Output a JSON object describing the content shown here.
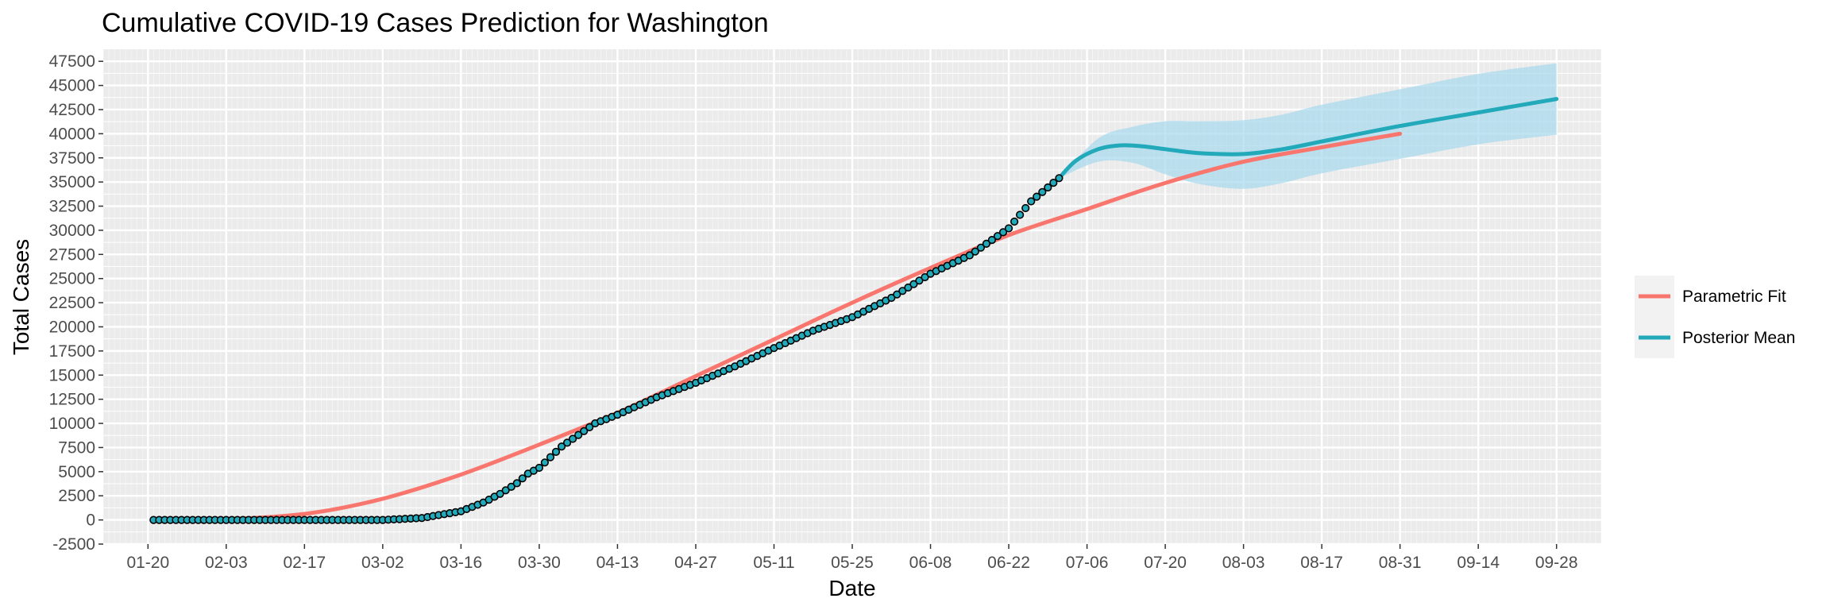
{
  "chart_data": {
    "type": "line",
    "title": "Cumulative COVID-19 Cases Prediction for Washington",
    "xlabel": "Date",
    "ylabel": "Total Cases",
    "x_tick_labels": [
      "01-20",
      "02-03",
      "02-17",
      "03-02",
      "03-16",
      "03-30",
      "04-13",
      "04-27",
      "05-11",
      "05-25",
      "06-08",
      "06-22",
      "07-06",
      "07-20",
      "08-03",
      "08-17",
      "08-31",
      "09-14",
      "09-28"
    ],
    "x_range": [
      "2020-01-12",
      "2020-10-06"
    ],
    "ylim": [
      -2500,
      48750
    ],
    "y_ticks": [
      -2500,
      0,
      2500,
      5000,
      7500,
      10000,
      12500,
      15000,
      17500,
      20000,
      22500,
      25000,
      27500,
      30000,
      32500,
      35000,
      37500,
      40000,
      42500,
      45000,
      47500
    ],
    "grid": true,
    "legend": {
      "position": "right",
      "entries": [
        {
          "label": "Parametric Fit",
          "color": "#F8766D"
        },
        {
          "label": "Posterior Mean",
          "color": "#22A9BA"
        }
      ]
    },
    "observed_points": {
      "dates": [
        "2020-01-21",
        "2020-02-04",
        "2020-02-18",
        "2020-03-02",
        "2020-03-09",
        "2020-03-16",
        "2020-03-20",
        "2020-03-23",
        "2020-03-26",
        "2020-03-28",
        "2020-03-30",
        "2020-04-01",
        "2020-04-03",
        "2020-04-06",
        "2020-04-09",
        "2020-04-13",
        "2020-04-20",
        "2020-04-27",
        "2020-05-04",
        "2020-05-11",
        "2020-05-18",
        "2020-05-25",
        "2020-06-01",
        "2020-06-08",
        "2020-06-15",
        "2020-06-22",
        "2020-06-26",
        "2020-07-01"
      ],
      "values": [
        0,
        0,
        0,
        0,
        200,
        900,
        1800,
        2700,
        3800,
        4800,
        5400,
        6500,
        7600,
        8800,
        10000,
        10900,
        12700,
        14200,
        15900,
        17800,
        19600,
        21000,
        23000,
        25500,
        27400,
        30200,
        33000,
        35400
      ],
      "fill": "#22A9BA",
      "stroke": "#000000"
    },
    "series": [
      {
        "name": "Parametric Fit",
        "color": "#F8766D",
        "dates": [
          "2020-01-21",
          "2020-02-04",
          "2020-02-18",
          "2020-03-02",
          "2020-03-16",
          "2020-03-30",
          "2020-04-13",
          "2020-04-27",
          "2020-05-11",
          "2020-05-25",
          "2020-06-08",
          "2020-06-22",
          "2020-07-06",
          "2020-07-20",
          "2020-08-03",
          "2020-08-17",
          "2020-08-31"
        ],
        "values": [
          0,
          100,
          700,
          2200,
          4700,
          7800,
          11100,
          14900,
          18700,
          22500,
          26100,
          29500,
          32200,
          34900,
          37100,
          38600,
          40000
        ]
      },
      {
        "name": "Posterior Mean",
        "color": "#22A9BA",
        "dates": [
          "2020-07-01",
          "2020-07-04",
          "2020-07-08",
          "2020-07-12",
          "2020-07-16",
          "2020-07-20",
          "2020-07-26",
          "2020-08-03",
          "2020-08-10",
          "2020-08-17",
          "2020-08-31",
          "2020-09-14",
          "2020-09-28"
        ],
        "values": [
          35400,
          37200,
          38400,
          38800,
          38700,
          38400,
          38000,
          37900,
          38400,
          39200,
          40800,
          42200,
          43600
        ]
      }
    ],
    "credible_band": {
      "color": "#A6D8EE",
      "dates": [
        "2020-07-01",
        "2020-07-08",
        "2020-07-14",
        "2020-07-20",
        "2020-07-26",
        "2020-08-03",
        "2020-08-10",
        "2020-08-17",
        "2020-08-31",
        "2020-09-14",
        "2020-09-28"
      ],
      "lower": [
        35400,
        37100,
        37000,
        35800,
        34800,
        34300,
        34900,
        35900,
        37400,
        38900,
        39900
      ],
      "upper": [
        35400,
        39500,
        40700,
        41300,
        41300,
        41400,
        42000,
        43000,
        44600,
        46200,
        47300
      ]
    }
  }
}
